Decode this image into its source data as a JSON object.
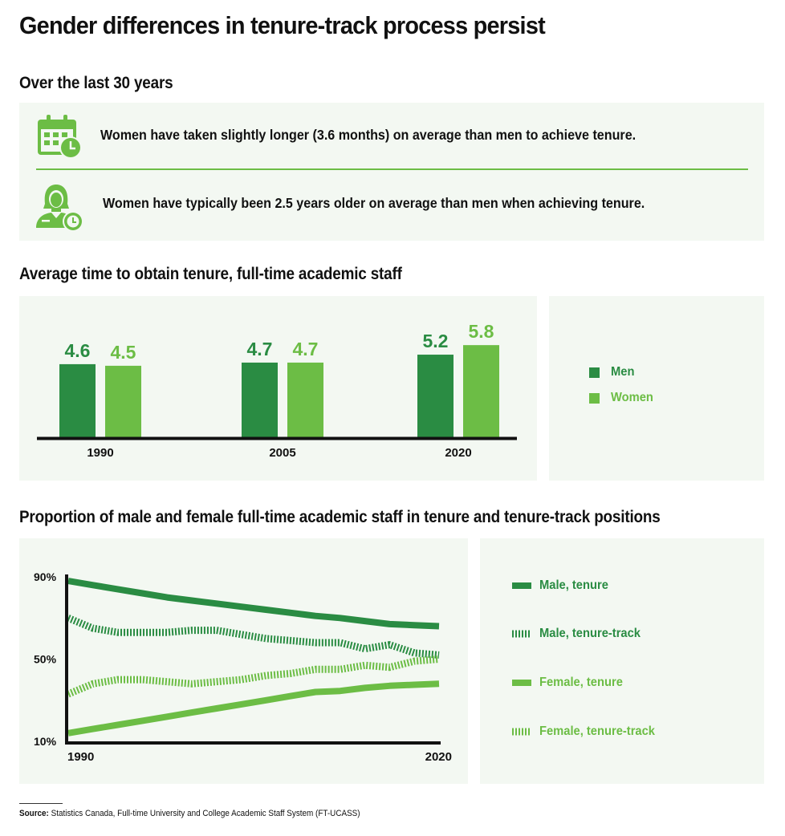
{
  "title": "Gender differences in tenure-track process persist",
  "facts": {
    "heading": "Over the last 30 years",
    "items": [
      {
        "icon": "calendar-clock-icon",
        "text": "Women have taken slightly longer (3.6 months) on average than men to achieve tenure."
      },
      {
        "icon": "woman-clock-icon",
        "text": "Women have typically been 2.5 years older on average than men when achieving tenure."
      }
    ]
  },
  "colors": {
    "men": "#2a8c43",
    "women": "#6cbd45",
    "panel_bg": "#f3f8f2",
    "axis": "#111111"
  },
  "chart_data": [
    {
      "type": "bar",
      "title": "Average time to obtain tenure, full-time academic staff",
      "categories": [
        "1990",
        "2005",
        "2020"
      ],
      "series": [
        {
          "name": "Men",
          "values": [
            4.6,
            4.7,
            5.2
          ]
        },
        {
          "name": "Women",
          "values": [
            4.5,
            4.7,
            5.8
          ]
        }
      ],
      "value_labels": {
        "Men": [
          "4.6",
          "4.7",
          "5.2"
        ],
        "Women": [
          "4.5",
          "4.7",
          "5.8"
        ]
      },
      "grid": false,
      "legend": "right"
    },
    {
      "type": "line",
      "title": "Proportion of male and female full-time academic staff in tenure and tenure-track positions",
      "x_tick_labels": [
        "1990",
        "2020"
      ],
      "y_tick_labels": [
        "90%",
        "50%",
        "10%"
      ],
      "y_ticks": [
        90,
        50,
        10
      ],
      "xlim": [
        1990,
        2020
      ],
      "ylim": [
        10,
        90
      ],
      "x": [
        1990,
        1992,
        1994,
        1996,
        1998,
        2000,
        2002,
        2004,
        2006,
        2008,
        2010,
        2012,
        2014,
        2016,
        2018,
        2020
      ],
      "series": [
        {
          "name": "Male, tenure",
          "style": "solid",
          "color": "#2a8c43",
          "values": [
            88,
            86,
            84,
            82,
            80,
            78.5,
            77,
            75.5,
            74,
            72.5,
            71,
            70,
            68.5,
            67,
            66.5,
            66
          ]
        },
        {
          "name": "Male, tenure-track",
          "style": "hatched",
          "color": "#2a8c43",
          "values": [
            70,
            65,
            63,
            63,
            63,
            64,
            64,
            62,
            60,
            59,
            58,
            58,
            55,
            57,
            53,
            52
          ]
        },
        {
          "name": "Female, tenure",
          "style": "solid",
          "color": "#6cbd45",
          "values": [
            14,
            16,
            18,
            20,
            22,
            24,
            26,
            28,
            30,
            32,
            34,
            34.5,
            36,
            37,
            37.5,
            38
          ]
        },
        {
          "name": "Female, tenure-track",
          "style": "hatched",
          "color": "#6cbd45",
          "values": [
            33,
            38,
            40,
            40,
            39,
            38,
            39,
            40,
            42,
            43,
            45,
            45,
            47,
            46,
            49,
            50
          ]
        }
      ],
      "grid": false,
      "legend": "right"
    }
  ],
  "legend_bar": [
    {
      "name": "Men",
      "color": "#2a8c43"
    },
    {
      "name": "Women",
      "color": "#6cbd45"
    }
  ],
  "legend_line": [
    {
      "name": "Male, tenure",
      "style": "solid",
      "color": "#2a8c43"
    },
    {
      "name": "Male, tenure-track",
      "style": "hatched",
      "color": "#2a8c43"
    },
    {
      "name": "Female, tenure",
      "style": "solid",
      "color": "#6cbd45"
    },
    {
      "name": "Female, tenure-track",
      "style": "hatched",
      "color": "#6cbd45"
    }
  ],
  "source": {
    "label": "Source:",
    "text": "Statistics Canada, Full-time University and College Academic Staff System (FT-UCASS)"
  }
}
